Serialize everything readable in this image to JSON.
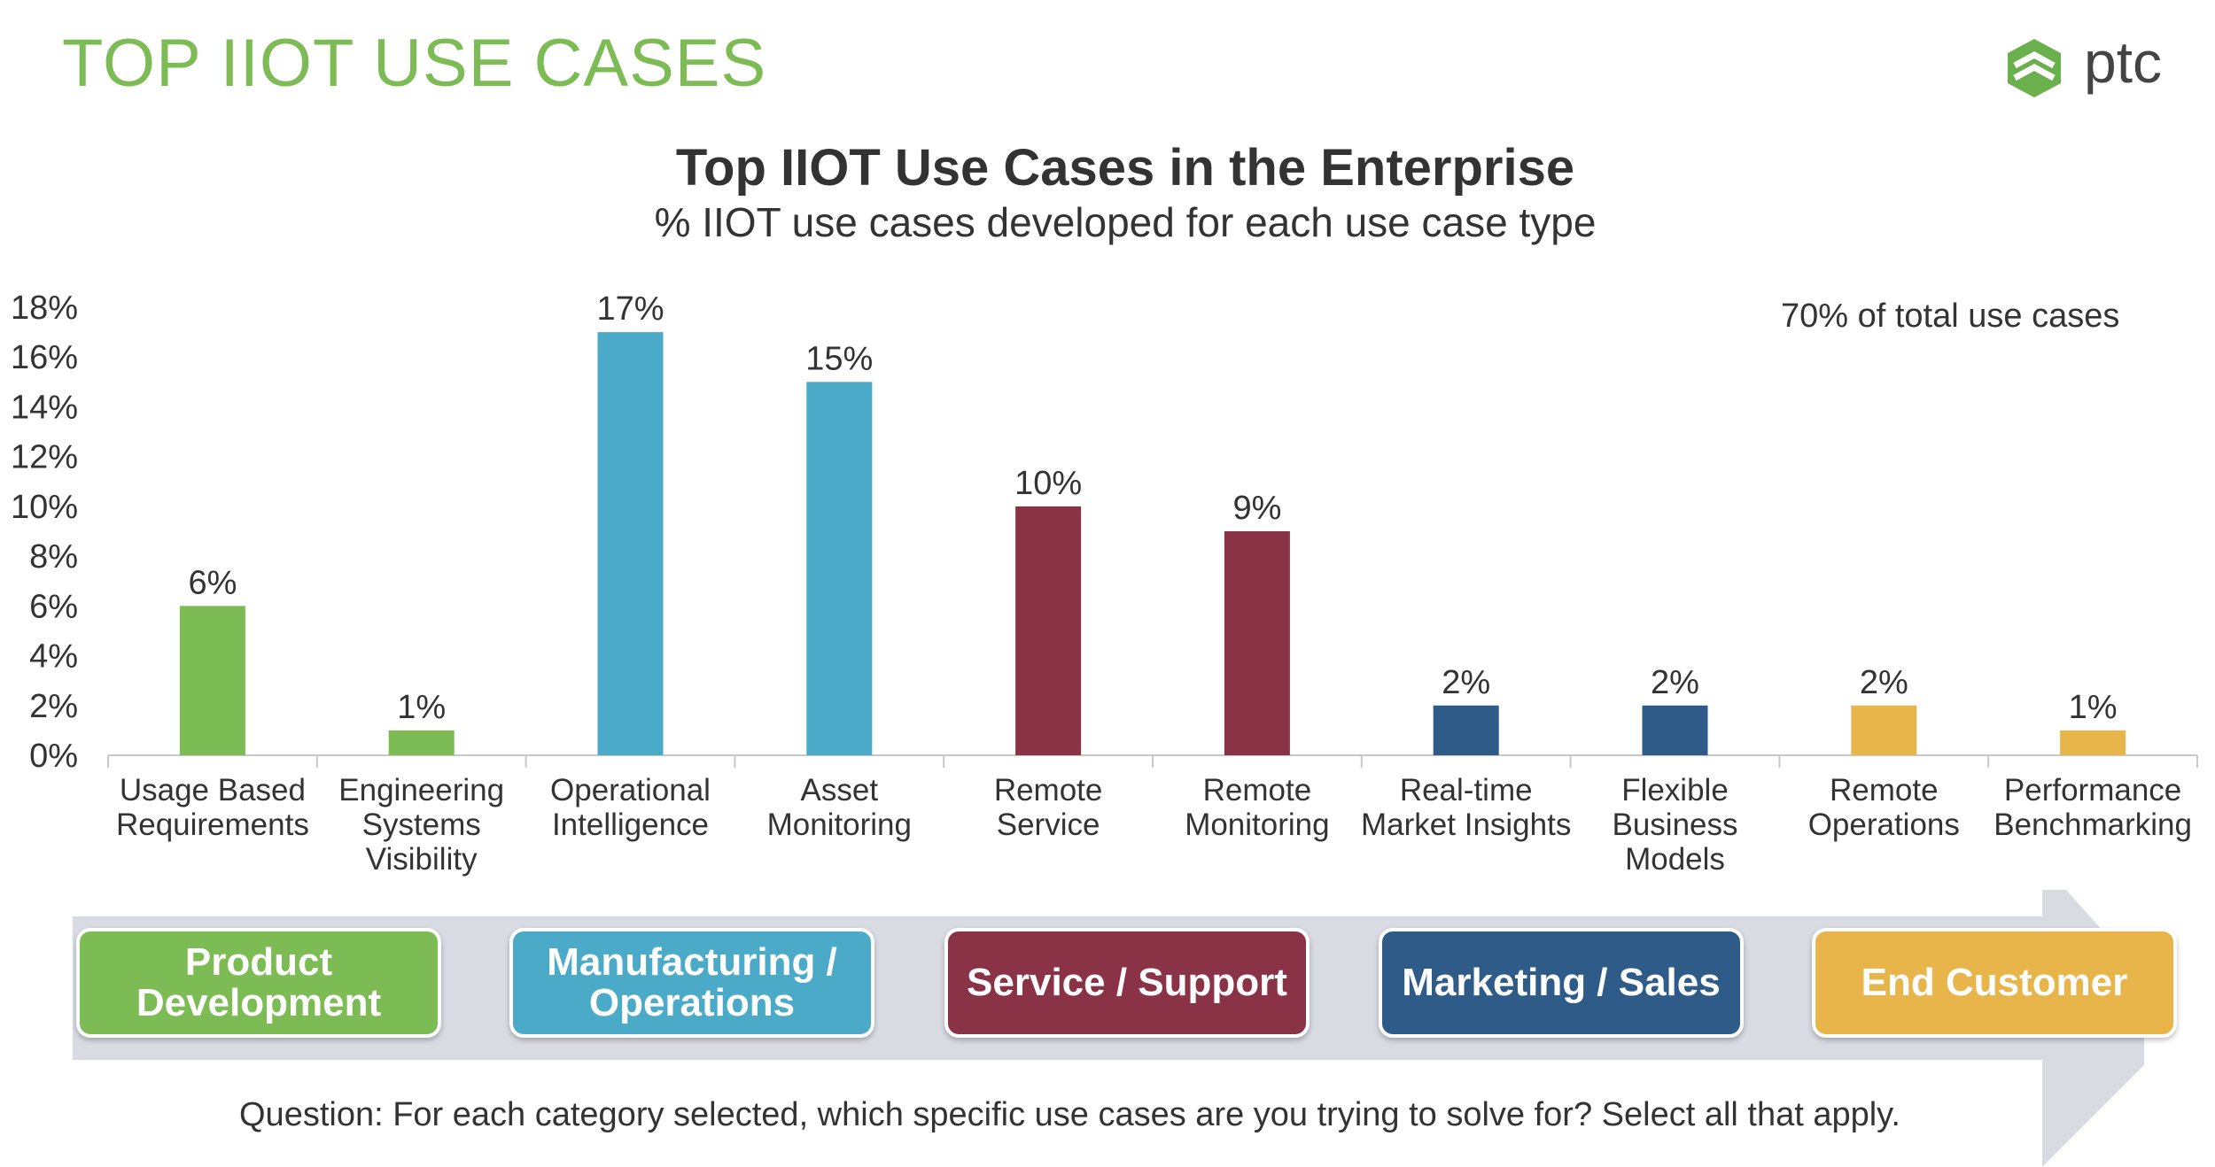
{
  "slide_title": "TOP IIOT USE CASES",
  "logo": {
    "text": "ptc",
    "icon": "ptc-logo-icon",
    "icon_color": "#6ab04c"
  },
  "chart_data": {
    "type": "bar",
    "title": "Top IIOT Use Cases in the Enterprise",
    "subtitle": "% IIOT use cases developed for each use case type",
    "annotation": "70% of total use cases",
    "categories": [
      "Usage Based Requirements",
      "Engineering Systems Visibility",
      "Operational Intelligence",
      "Asset Monitoring",
      "Remote Service",
      "Remote Monitoring",
      "Real-time Market Insights",
      "Flexible Business Models",
      "Remote Operations",
      "Performance Benchmarking"
    ],
    "category_label_lines": [
      [
        "Usage Based",
        "Requirements"
      ],
      [
        "Engineering",
        "Systems",
        "Visibility"
      ],
      [
        "Operational",
        "Intelligence"
      ],
      [
        "Asset",
        "Monitoring"
      ],
      [
        "Remote",
        "Service"
      ],
      [
        "Remote",
        "Monitoring"
      ],
      [
        "Real-time",
        "Market Insights"
      ],
      [
        "Flexible",
        "Business",
        "Models"
      ],
      [
        "Remote",
        "Operations"
      ],
      [
        "Performance",
        "Benchmarking"
      ]
    ],
    "values": [
      6,
      1,
      17,
      15,
      10,
      9,
      2,
      2,
      2,
      1
    ],
    "value_labels": [
      "6%",
      "1%",
      "17%",
      "15%",
      "10%",
      "9%",
      "2%",
      "2%",
      "2%",
      "1%"
    ],
    "bar_colors": [
      "#7dbb55",
      "#7dbb55",
      "#4aaac8",
      "#4aaac8",
      "#8b3346",
      "#8b3346",
      "#2f5b88",
      "#2f5b88",
      "#e8b54a",
      "#e8b54a"
    ],
    "ylim": [
      0,
      18
    ],
    "yticks": [
      0,
      2,
      4,
      6,
      8,
      10,
      12,
      14,
      16,
      18
    ],
    "ytick_labels": [
      "0%",
      "2%",
      "4%",
      "6%",
      "8%",
      "10%",
      "12%",
      "14%",
      "16%",
      "18%"
    ],
    "grid": false,
    "xlabel": "",
    "ylabel": ""
  },
  "categories_band": [
    {
      "label": "Product Development",
      "lines": [
        "Product",
        "Development"
      ],
      "color": "#7dbb55"
    },
    {
      "label": "Manufacturing / Operations",
      "lines": [
        "Manufacturing /",
        "Operations"
      ],
      "color": "#4aaac8"
    },
    {
      "label": "Service / Support",
      "lines": [
        "Service / Support"
      ],
      "color": "#8b3346"
    },
    {
      "label": "Marketing / Sales",
      "lines": [
        "Marketing / Sales"
      ],
      "color": "#2f5b88"
    },
    {
      "label": "End Customer",
      "lines": [
        "End Customer"
      ],
      "color": "#e8b54a"
    }
  ],
  "band_color": "#d9dbe3",
  "question": "Question:   For each category selected, which specific use cases are you trying to solve for? Select all that apply."
}
